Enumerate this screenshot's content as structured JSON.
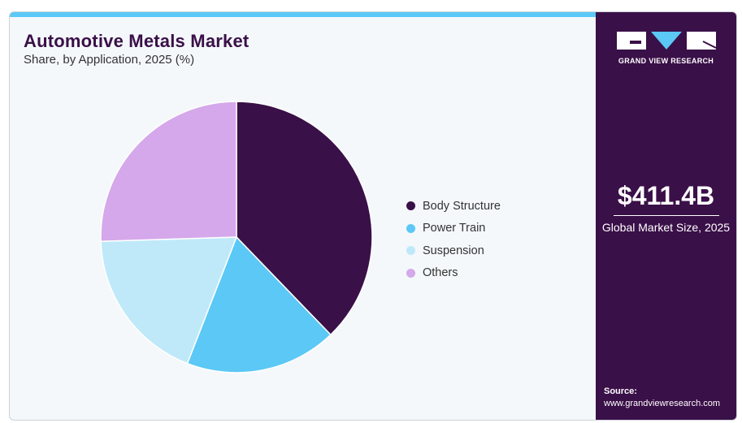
{
  "title": "Automotive Metals Market",
  "subtitle": "Share, by Application, 2025 (%)",
  "brand": {
    "name": "GRAND VIEW RESEARCH"
  },
  "market": {
    "value": "$411.4B",
    "label": "Global Market Size, 2025"
  },
  "source": {
    "label": "Source:",
    "url": "www.grandviewresearch.com"
  },
  "colors": {
    "accent": "#5bc8f5",
    "brand": "#3a1048"
  },
  "chart_data": {
    "type": "pie",
    "title": "Automotive Metals Market",
    "subtitle": "Share, by Application, 2025 (%)",
    "legend_position": "right",
    "categories": [
      "Body Structure",
      "Power Train",
      "Suspension",
      "Others"
    ],
    "values": [
      37.8,
      18.1,
      18.6,
      25.5
    ],
    "colors": [
      "#3a1048",
      "#5bc8f5",
      "#bfe9f9",
      "#d4a8ea"
    ]
  }
}
